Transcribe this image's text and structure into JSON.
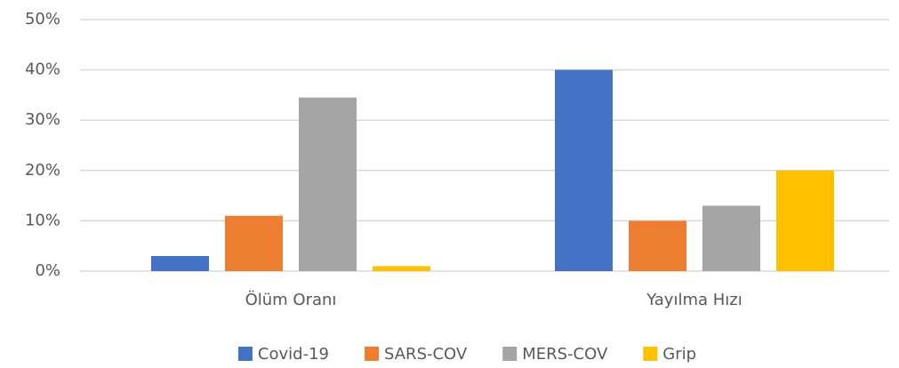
{
  "chart_data": {
    "type": "bar",
    "categories": [
      "Ölüm Oranı",
      "Yayılma Hızı"
    ],
    "series": [
      {
        "name": "Covid-19",
        "color": "#4472c4",
        "values": [
          3,
          40
        ]
      },
      {
        "name": "SARS-COV",
        "color": "#ed7d31",
        "values": [
          11,
          10
        ]
      },
      {
        "name": "MERS-COV",
        "color": "#a5a5a5",
        "values": [
          34.5,
          13
        ]
      },
      {
        "name": "Grip",
        "color": "#ffc000",
        "values": [
          1,
          20
        ]
      }
    ],
    "ylim": [
      0,
      50
    ],
    "yticks": [
      {
        "value": 0,
        "label": "0%"
      },
      {
        "value": 10,
        "label": "10%"
      },
      {
        "value": 20,
        "label": "20%"
      },
      {
        "value": 30,
        "label": "30%"
      },
      {
        "value": 40,
        "label": "40%"
      },
      {
        "value": 50,
        "label": "50%"
      }
    ],
    "grid": true,
    "legend": "bottom"
  }
}
